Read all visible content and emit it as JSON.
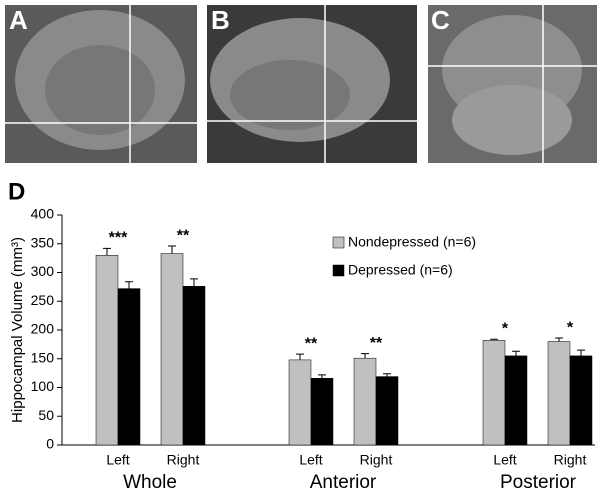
{
  "panels": [
    "A",
    "B",
    "C"
  ],
  "chart_data": {
    "type": "bar",
    "panel": "D",
    "ylabel": "Hippocampal Volume (mm³)",
    "categories": [
      "Left",
      "Right",
      "Left",
      "Right",
      "Left",
      "Right"
    ],
    "groups": [
      "Whole",
      "Anterior",
      "Posterior"
    ],
    "series": [
      {
        "name": "Nondepressed (n=6)",
        "color": "#c0c0c0",
        "values": [
          330,
          333,
          148,
          151,
          182,
          180
        ],
        "errors": [
          12,
          13,
          10,
          8,
          2,
          6
        ]
      },
      {
        "name": "Depressed (n=6)",
        "color": "#000000",
        "values": [
          272,
          276,
          116,
          119,
          155,
          155
        ],
        "errors": [
          12,
          13,
          6,
          5,
          8,
          10
        ]
      }
    ],
    "annotations": [
      "***",
      "**",
      "**",
      "**",
      "*",
      "*"
    ],
    "ylim": [
      0,
      400
    ],
    "yticks": [
      0,
      50,
      100,
      150,
      200,
      250,
      300,
      350,
      400
    ],
    "legend": "upper right"
  }
}
